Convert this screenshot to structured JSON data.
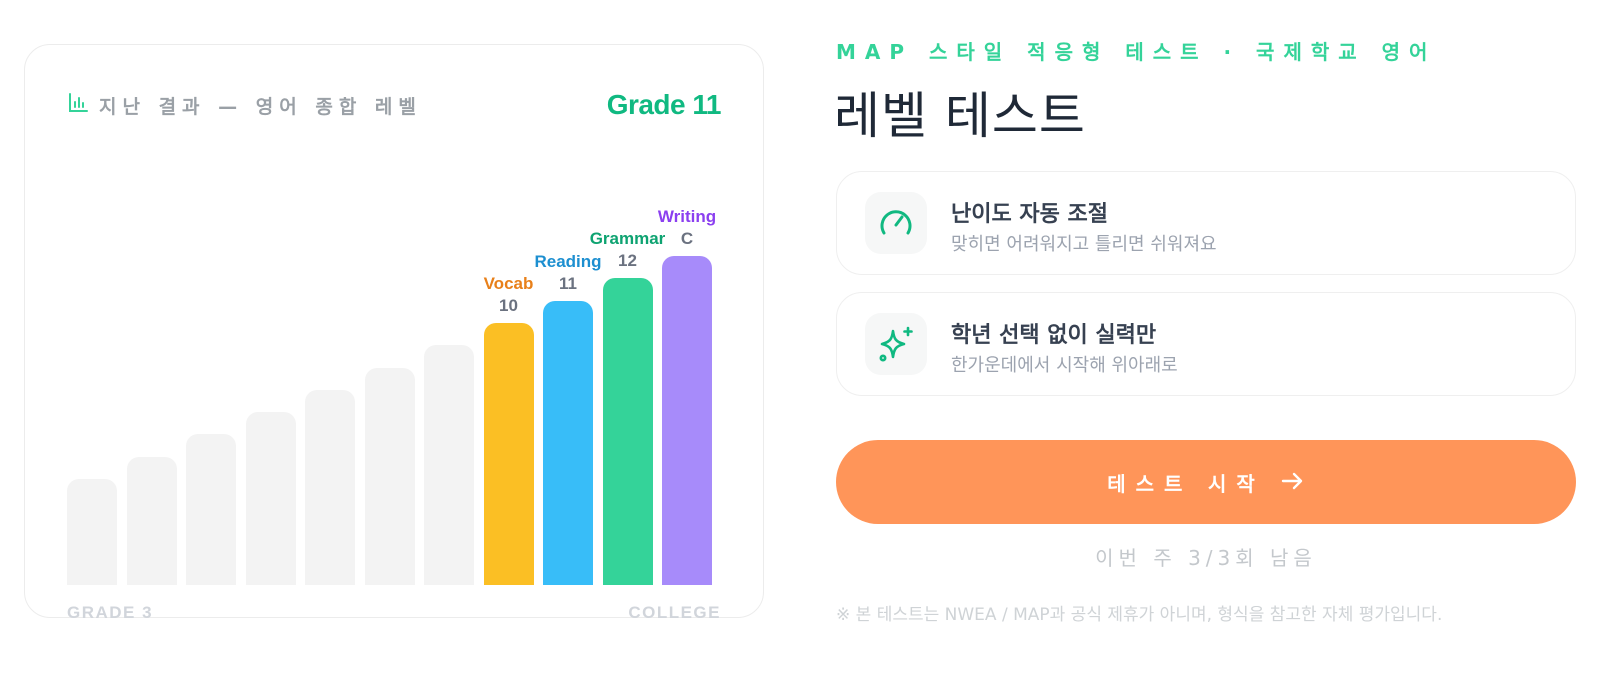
{
  "card": {
    "title": "지난 결과 — 영어 종합 레벨",
    "grade": "Grade 11",
    "axis_start": "GRADE 3",
    "axis_end": "COLLEGE"
  },
  "chart_data": {
    "type": "bar",
    "title": "지난 결과 — 영어 종합 레벨",
    "xlabel": "",
    "ylabel": "",
    "x_axis_ends": [
      "GRADE 3",
      "COLLEGE"
    ],
    "background_levels": [
      3,
      4,
      5,
      6,
      7,
      8,
      9
    ],
    "series": [
      {
        "name": "Vocab",
        "level": 10,
        "label": "10",
        "color": "#fbbf24",
        "label_color": "#e8801a"
      },
      {
        "name": "Reading",
        "level": 11,
        "label": "11",
        "color": "#38bdf8",
        "label_color": "#1d8fd0"
      },
      {
        "name": "Grammar",
        "level": 12,
        "label": "12",
        "color": "#34d399",
        "label_color": "#0ea371"
      },
      {
        "name": "Writing",
        "level": 13,
        "label": "C",
        "color": "#a78bfa",
        "label_color": "#8b3ff0"
      }
    ],
    "background_color": "#f3f3f3"
  },
  "header": {
    "eyebrow": "MAP 스타일 적응형 테스트 · 국제학교 영어",
    "title": "레벨 테스트"
  },
  "features": [
    {
      "title": "난이도 자동 조절",
      "desc": "맞히면 어려워지고 틀리면 쉬워져요",
      "icon": "gauge-icon"
    },
    {
      "title": "학년 선택 없이 실력만",
      "desc": "한가운데에서 시작해 위아래로",
      "icon": "sparkle-icon"
    }
  ],
  "cta": {
    "label": "테스트 시작",
    "icon": "arrow-right-icon"
  },
  "remaining": "이번 주 3/3회 남음",
  "disclaimer": "※ 본 테스트는 NWEA / MAP과 공식 제휴가 아니며, 형식을 참고한 자체 평가입니다.",
  "colors": {
    "accent": "#10b981",
    "cta": "#ff9559"
  }
}
